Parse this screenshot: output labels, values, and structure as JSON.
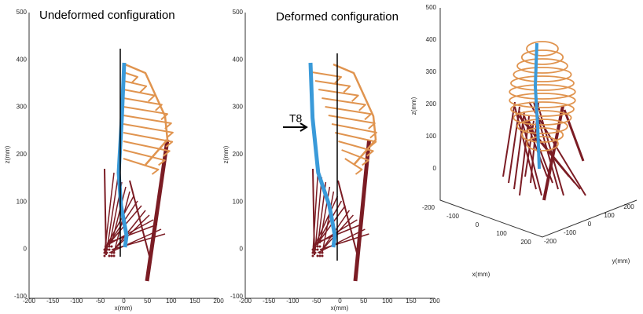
{
  "panels": [
    {
      "title": "Undeformed configuration",
      "xlabel": "x(mm)",
      "ylabel": "z(mm)",
      "xticks": [
        "-200",
        "-150",
        "-100",
        "-50",
        "0",
        "50",
        "100",
        "150",
        "200"
      ],
      "yticks": [
        "500",
        "400",
        "300",
        "200",
        "100",
        "0",
        "-100"
      ]
    },
    {
      "title": "Deformed configuration",
      "xlabel": "x(mm)",
      "ylabel": "z(mm)",
      "annotation": "T8",
      "xticks": [
        "-200",
        "-150",
        "-100",
        "-50",
        "0",
        "50",
        "100",
        "150",
        "200"
      ],
      "yticks": [
        "500",
        "400",
        "300",
        "200",
        "100",
        "0",
        "-100"
      ]
    },
    {
      "xlabel": "x(mm)",
      "ylabel": "y(mm)",
      "zlabel": "z(mm)",
      "zticks": [
        "500",
        "400",
        "300",
        "200",
        "100",
        "0"
      ],
      "xticks": [
        "-200",
        "-100",
        "0",
        "100",
        "200"
      ],
      "yticks": [
        "-200",
        "-100",
        "0",
        "100",
        "200"
      ]
    }
  ]
}
